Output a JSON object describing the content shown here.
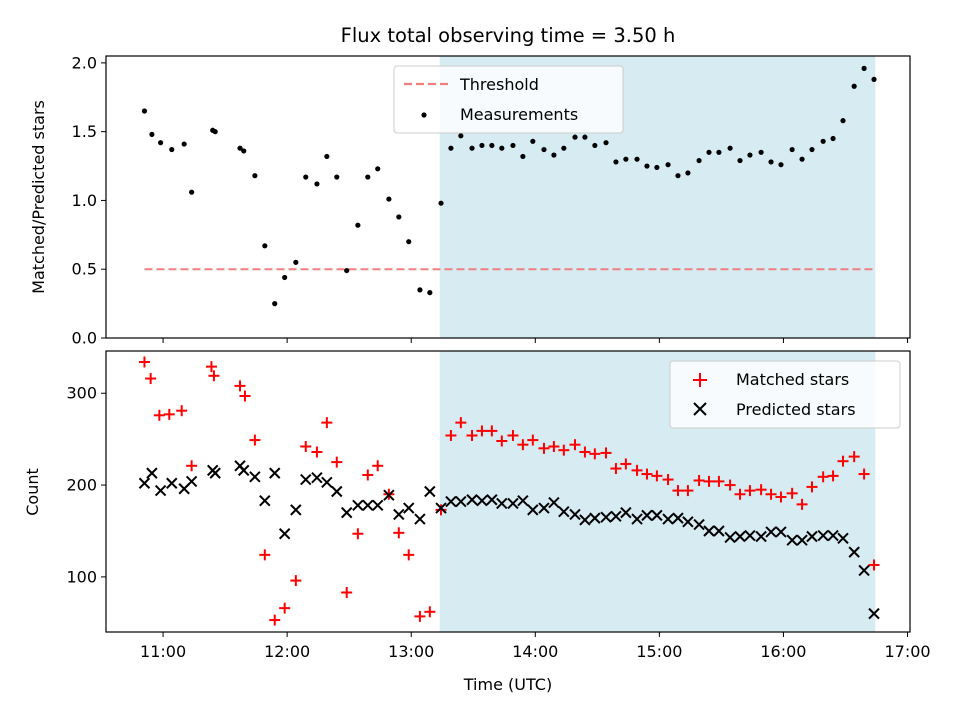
{
  "chart_data": [
    {
      "type": "scatter",
      "panel": "top",
      "title": "Flux total observing time = 3.50 h",
      "ylabel": "Matched/Predicted stars",
      "xlabel": "",
      "xlim_hours": [
        10.54,
        17.02
      ],
      "ylim": [
        0,
        2.05
      ],
      "yticks": [
        0.0,
        0.5,
        1.0,
        1.5,
        2.0
      ],
      "ytick_labels": [
        "0.0",
        "0.5",
        "1.0",
        "1.5",
        "2.0"
      ],
      "shaded_interval_hours": [
        13.23,
        16.74
      ],
      "shade_color": "#add8e6",
      "legend": {
        "placement": "top-center",
        "entries": [
          "Threshold",
          "Measurements"
        ]
      },
      "threshold": {
        "name": "Threshold",
        "value": 0.5,
        "x_range_hours": [
          10.85,
          16.75
        ],
        "color": "#f08080",
        "style": "dashed"
      },
      "series": [
        {
          "name": "Measurements",
          "color": "#000000",
          "marker": "dot",
          "points": [
            [
              10.85,
              1.65
            ],
            [
              10.91,
              1.48
            ],
            [
              10.98,
              1.42
            ],
            [
              11.07,
              1.37
            ],
            [
              11.17,
              1.41
            ],
            [
              11.23,
              1.06
            ],
            [
              11.4,
              1.51
            ],
            [
              11.42,
              1.5
            ],
            [
              11.62,
              1.38
            ],
            [
              11.65,
              1.36
            ],
            [
              11.74,
              1.18
            ],
            [
              11.82,
              0.67
            ],
            [
              11.9,
              0.25
            ],
            [
              11.98,
              0.44
            ],
            [
              12.07,
              0.55
            ],
            [
              12.15,
              1.17
            ],
            [
              12.24,
              1.12
            ],
            [
              12.32,
              1.32
            ],
            [
              12.4,
              1.17
            ],
            [
              12.48,
              0.49
            ],
            [
              12.57,
              0.82
            ],
            [
              12.65,
              1.17
            ],
            [
              12.73,
              1.23
            ],
            [
              12.82,
              1.01
            ],
            [
              12.9,
              0.88
            ],
            [
              12.98,
              0.7
            ],
            [
              13.07,
              0.35
            ],
            [
              13.15,
              0.33
            ],
            [
              13.24,
              0.98
            ],
            [
              13.32,
              1.38
            ],
            [
              13.4,
              1.47
            ],
            [
              13.49,
              1.38
            ],
            [
              13.57,
              1.4
            ],
            [
              13.65,
              1.4
            ],
            [
              13.73,
              1.38
            ],
            [
              13.82,
              1.4
            ],
            [
              13.9,
              1.32
            ],
            [
              13.98,
              1.43
            ],
            [
              14.07,
              1.37
            ],
            [
              14.15,
              1.33
            ],
            [
              14.23,
              1.38
            ],
            [
              14.32,
              1.46
            ],
            [
              14.4,
              1.46
            ],
            [
              14.48,
              1.4
            ],
            [
              14.57,
              1.42
            ],
            [
              14.65,
              1.28
            ],
            [
              14.73,
              1.3
            ],
            [
              14.82,
              1.3
            ],
            [
              14.9,
              1.25
            ],
            [
              14.98,
              1.24
            ],
            [
              15.07,
              1.26
            ],
            [
              15.15,
              1.18
            ],
            [
              15.23,
              1.2
            ],
            [
              15.32,
              1.29
            ],
            [
              15.4,
              1.35
            ],
            [
              15.48,
              1.35
            ],
            [
              15.57,
              1.38
            ],
            [
              15.65,
              1.29
            ],
            [
              15.73,
              1.33
            ],
            [
              15.82,
              1.35
            ],
            [
              15.9,
              1.28
            ],
            [
              15.98,
              1.26
            ],
            [
              16.07,
              1.37
            ],
            [
              16.15,
              1.3
            ],
            [
              16.23,
              1.37
            ],
            [
              16.32,
              1.43
            ],
            [
              16.4,
              1.45
            ],
            [
              16.48,
              1.58
            ],
            [
              16.57,
              1.83
            ],
            [
              16.65,
              1.96
            ],
            [
              16.73,
              1.88
            ]
          ]
        }
      ]
    },
    {
      "type": "scatter",
      "panel": "bottom",
      "title": "",
      "ylabel": "Count",
      "xlabel": "Time (UTC)",
      "xlim_hours": [
        10.54,
        17.02
      ],
      "ylim": [
        40,
        346
      ],
      "yticks": [
        100,
        200,
        300
      ],
      "ytick_labels": [
        "100",
        "200",
        "300"
      ],
      "xticks_hours": [
        11,
        12,
        13,
        14,
        15,
        16,
        17
      ],
      "xtick_labels": [
        "11:00",
        "12:00",
        "13:00",
        "14:00",
        "15:00",
        "16:00",
        "17:00"
      ],
      "shaded_interval_hours": [
        13.23,
        16.74
      ],
      "shade_color": "#add8e6",
      "legend": {
        "placement": "top-right",
        "entries": [
          "Matched stars",
          "Predicted stars"
        ]
      },
      "series": [
        {
          "name": "Matched stars",
          "color": "#ff0000",
          "marker": "plus",
          "points": [
            [
              10.85,
              334
            ],
            [
              10.9,
              316
            ],
            [
              10.97,
              276
            ],
            [
              11.05,
              277
            ],
            [
              11.15,
              281
            ],
            [
              11.23,
              221
            ],
            [
              11.39,
              329
            ],
            [
              11.41,
              319
            ],
            [
              11.62,
              308
            ],
            [
              11.66,
              297
            ],
            [
              11.74,
              249
            ],
            [
              11.82,
              124
            ],
            [
              11.9,
              53
            ],
            [
              11.98,
              66
            ],
            [
              12.07,
              96
            ],
            [
              12.15,
              242
            ],
            [
              12.24,
              236
            ],
            [
              12.32,
              268
            ],
            [
              12.4,
              225
            ],
            [
              12.48,
              83
            ],
            [
              12.57,
              147
            ],
            [
              12.65,
              211
            ],
            [
              12.73,
              221
            ],
            [
              12.82,
              190
            ],
            [
              12.9,
              148
            ],
            [
              12.98,
              124
            ],
            [
              13.07,
              57
            ],
            [
              13.15,
              62
            ],
            [
              13.24,
              173
            ],
            [
              13.32,
              254
            ],
            [
              13.4,
              268
            ],
            [
              13.49,
              254
            ],
            [
              13.57,
              259
            ],
            [
              13.65,
              259
            ],
            [
              13.73,
              248
            ],
            [
              13.82,
              254
            ],
            [
              13.9,
              244
            ],
            [
              13.98,
              249
            ],
            [
              14.07,
              240
            ],
            [
              14.15,
              242
            ],
            [
              14.23,
              238
            ],
            [
              14.32,
              244
            ],
            [
              14.4,
              236
            ],
            [
              14.48,
              234
            ],
            [
              14.57,
              235
            ],
            [
              14.65,
              218
            ],
            [
              14.73,
              223
            ],
            [
              14.82,
              216
            ],
            [
              14.9,
              212
            ],
            [
              14.98,
              210
            ],
            [
              15.07,
              206
            ],
            [
              15.15,
              194
            ],
            [
              15.23,
              194
            ],
            [
              15.32,
              205
            ],
            [
              15.4,
              204
            ],
            [
              15.48,
              204
            ],
            [
              15.57,
              200
            ],
            [
              15.65,
              190
            ],
            [
              15.73,
              194
            ],
            [
              15.82,
              195
            ],
            [
              15.9,
              190
            ],
            [
              15.98,
              187
            ],
            [
              16.07,
              191
            ],
            [
              16.15,
              179
            ],
            [
              16.23,
              198
            ],
            [
              16.32,
              209
            ],
            [
              16.4,
              210
            ],
            [
              16.48,
              226
            ],
            [
              16.57,
              231
            ],
            [
              16.65,
              212
            ],
            [
              16.73,
              113
            ]
          ]
        },
        {
          "name": "Predicted stars",
          "color": "#000000",
          "marker": "x",
          "points": [
            [
              10.85,
              202
            ],
            [
              10.91,
              213
            ],
            [
              10.98,
              194
            ],
            [
              11.07,
              202
            ],
            [
              11.17,
              196
            ],
            [
              11.23,
              204
            ],
            [
              11.4,
              216
            ],
            [
              11.42,
              213
            ],
            [
              11.62,
              221
            ],
            [
              11.65,
              216
            ],
            [
              11.74,
              209
            ],
            [
              11.82,
              183
            ],
            [
              11.9,
              213
            ],
            [
              11.98,
              147
            ],
            [
              12.07,
              173
            ],
            [
              12.15,
              206
            ],
            [
              12.24,
              208
            ],
            [
              12.32,
              203
            ],
            [
              12.4,
              193
            ],
            [
              12.48,
              170
            ],
            [
              12.57,
              178
            ],
            [
              12.65,
              178
            ],
            [
              12.73,
              178
            ],
            [
              12.82,
              189
            ],
            [
              12.9,
              168
            ],
            [
              12.98,
              175
            ],
            [
              13.07,
              163
            ],
            [
              13.15,
              193
            ],
            [
              13.24,
              175
            ],
            [
              13.32,
              182
            ],
            [
              13.4,
              182
            ],
            [
              13.49,
              184
            ],
            [
              13.57,
              183
            ],
            [
              13.65,
              184
            ],
            [
              13.73,
              180
            ],
            [
              13.82,
              180
            ],
            [
              13.9,
              183
            ],
            [
              13.98,
              173
            ],
            [
              14.07,
              175
            ],
            [
              14.15,
              181
            ],
            [
              14.23,
              171
            ],
            [
              14.32,
              168
            ],
            [
              14.4,
              162
            ],
            [
              14.48,
              164
            ],
            [
              14.57,
              165
            ],
            [
              14.65,
              166
            ],
            [
              14.73,
              170
            ],
            [
              14.82,
              163
            ],
            [
              14.9,
              167
            ],
            [
              14.98,
              167
            ],
            [
              15.07,
              163
            ],
            [
              15.15,
              164
            ],
            [
              15.23,
              160
            ],
            [
              15.32,
              157
            ],
            [
              15.4,
              150
            ],
            [
              15.48,
              150
            ],
            [
              15.57,
              143
            ],
            [
              15.65,
              144
            ],
            [
              15.73,
              145
            ],
            [
              15.82,
              144
            ],
            [
              15.9,
              149
            ],
            [
              15.98,
              149
            ],
            [
              16.07,
              140
            ],
            [
              16.15,
              140
            ],
            [
              16.23,
              144
            ],
            [
              16.32,
              145
            ],
            [
              16.4,
              145
            ],
            [
              16.48,
              142
            ],
            [
              16.57,
              127
            ],
            [
              16.65,
              107
            ],
            [
              16.73,
              60
            ]
          ]
        }
      ]
    }
  ]
}
